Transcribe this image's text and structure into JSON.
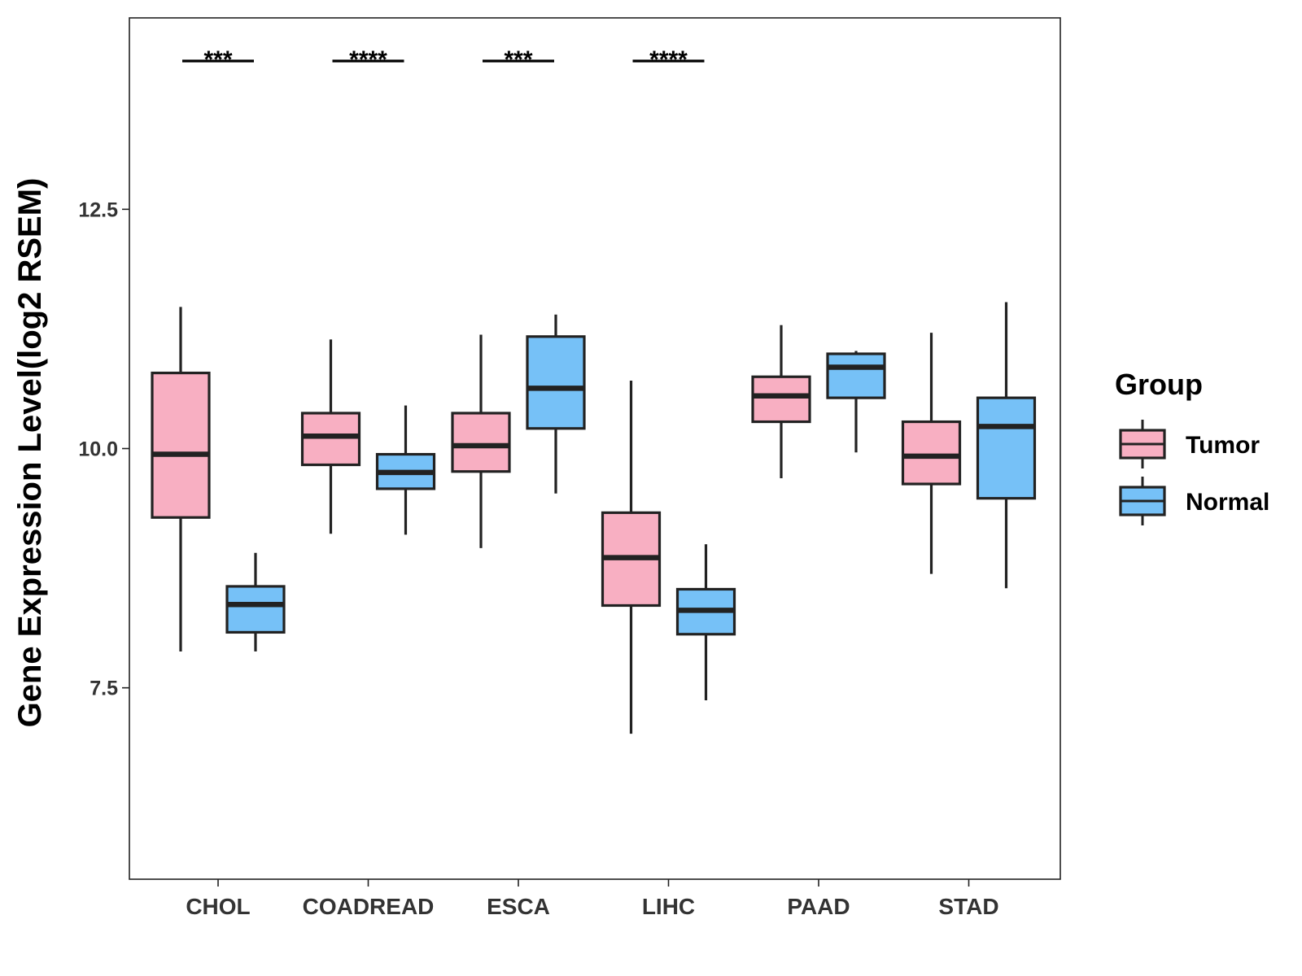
{
  "chart_data": {
    "type": "boxplot",
    "title": "",
    "xlabel": "",
    "ylabel": "Gene Expression Level(log2 RSEM)",
    "ylim": [
      5.5,
      14.5
    ],
    "yticks": [
      7.5,
      10.0,
      12.5
    ],
    "ytick_labels": [
      "7.5",
      "10.0",
      "12.5"
    ],
    "categories": [
      "CHOL",
      "COADREAD",
      "ESCA",
      "LIHC",
      "PAAD",
      "STAD"
    ],
    "legend": {
      "title": "Group",
      "position": "right",
      "entries": [
        {
          "name": "Tumor",
          "color": "#F8AFC2"
        },
        {
          "name": "Normal",
          "color": "#76C1F7"
        }
      ]
    },
    "series": [
      {
        "name": "Tumor",
        "color": "#F8AFC2",
        "boxes": [
          {
            "category": "CHOL",
            "whisker_low": 7.88,
            "q1": 9.28,
            "median": 9.94,
            "q3": 10.79,
            "whisker_high": 11.48
          },
          {
            "category": "COADREAD",
            "whisker_low": 9.11,
            "q1": 9.83,
            "median": 10.13,
            "q3": 10.37,
            "whisker_high": 11.14
          },
          {
            "category": "ESCA",
            "whisker_low": 8.96,
            "q1": 9.76,
            "median": 10.03,
            "q3": 10.37,
            "whisker_high": 11.19
          },
          {
            "category": "LIHC",
            "whisker_low": 7.02,
            "q1": 8.36,
            "median": 8.86,
            "q3": 9.33,
            "whisker_high": 10.71
          },
          {
            "category": "PAAD",
            "whisker_low": 9.69,
            "q1": 10.28,
            "median": 10.55,
            "q3": 10.75,
            "whisker_high": 11.29
          },
          {
            "category": "STAD",
            "whisker_low": 8.69,
            "q1": 9.63,
            "median": 9.92,
            "q3": 10.28,
            "whisker_high": 11.21
          }
        ]
      },
      {
        "name": "Normal",
        "color": "#76C1F7",
        "boxes": [
          {
            "category": "CHOL",
            "whisker_low": 7.88,
            "q1": 8.08,
            "median": 8.37,
            "q3": 8.56,
            "whisker_high": 8.91
          },
          {
            "category": "COADREAD",
            "whisker_low": 9.1,
            "q1": 9.58,
            "median": 9.75,
            "q3": 9.94,
            "whisker_high": 10.45
          },
          {
            "category": "ESCA",
            "whisker_low": 9.53,
            "q1": 10.21,
            "median": 10.63,
            "q3": 11.17,
            "whisker_high": 11.4
          },
          {
            "category": "LIHC",
            "whisker_low": 7.37,
            "q1": 8.06,
            "median": 8.31,
            "q3": 8.53,
            "whisker_high": 9.0
          },
          {
            "category": "PAAD",
            "whisker_low": 9.96,
            "q1": 10.53,
            "median": 10.85,
            "q3": 10.99,
            "whisker_high": 11.02
          },
          {
            "category": "STAD",
            "whisker_low": 8.54,
            "q1": 9.48,
            "median": 10.23,
            "q3": 10.53,
            "whisker_high": 11.53
          }
        ]
      }
    ],
    "significance": [
      {
        "category": "CHOL",
        "label": "***"
      },
      {
        "category": "COADREAD",
        "label": "****"
      },
      {
        "category": "ESCA",
        "label": "***"
      },
      {
        "category": "LIHC",
        "label": "****"
      }
    ],
    "grid": false
  }
}
